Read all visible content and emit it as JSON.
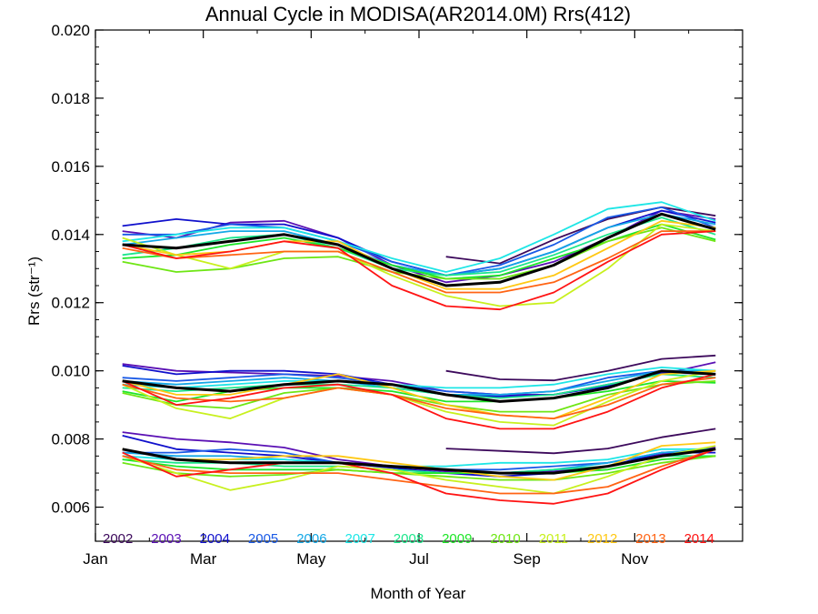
{
  "chart_data": {
    "type": "line",
    "title": "Annual Cycle in MODISA(AR2014.0M) Rrs(412)",
    "xlabel": "Month of Year",
    "ylabel": "Rrs (str⁻¹)",
    "xlim": [
      0.5,
      12.5
    ],
    "ylim": [
      0.005,
      0.02
    ],
    "x_ticks": [
      {
        "value": 0.5,
        "label": "Jan"
      },
      {
        "value": 2.5,
        "label": "Mar"
      },
      {
        "value": 4.5,
        "label": "May"
      },
      {
        "value": 6.5,
        "label": "Jul"
      },
      {
        "value": 8.5,
        "label": "Sep"
      },
      {
        "value": 10.5,
        "label": "Nov"
      }
    ],
    "y_ticks": [
      {
        "value": 0.006,
        "label": "0.006"
      },
      {
        "value": 0.008,
        "label": "0.008"
      },
      {
        "value": 0.01,
        "label": "0.010"
      },
      {
        "value": 0.012,
        "label": "0.012"
      },
      {
        "value": 0.014,
        "label": "0.014"
      },
      {
        "value": 0.016,
        "label": "0.016"
      },
      {
        "value": 0.018,
        "label": "0.018"
      },
      {
        "value": 0.02,
        "label": "0.020"
      }
    ],
    "legend_position": "bottom-left",
    "x": [
      1,
      2,
      3,
      4,
      5,
      6,
      7,
      8,
      9,
      10,
      11,
      12
    ],
    "series": [
      {
        "name": "2002",
        "color": "#3d0a5c",
        "groups": [
          [
            null,
            null,
            null,
            null,
            null,
            null,
            0.01335,
            0.01315,
            0.01385,
            0.01445,
            0.0148,
            0.01455
          ],
          [
            null,
            null,
            null,
            null,
            null,
            null,
            0.01,
            0.00975,
            0.00972,
            0.01,
            0.01035,
            0.01045
          ],
          [
            null,
            null,
            null,
            null,
            null,
            null,
            0.00772,
            0.00765,
            0.00758,
            0.00772,
            0.00805,
            0.0083
          ]
        ]
      },
      {
        "name": "2003",
        "color": "#5a10b4",
        "groups": [
          [
            0.0141,
            0.0139,
            0.01435,
            0.0144,
            0.0139,
            0.0131,
            0.0126,
            0.0128,
            0.0132,
            0.0139,
            0.0147,
            0.01445
          ],
          [
            0.0102,
            0.01,
            0.00995,
            0.0099,
            0.00985,
            0.0097,
            0.0094,
            0.0093,
            0.0093,
            0.0096,
            0.0099,
            0.01025
          ],
          [
            0.0082,
            0.008,
            0.0079,
            0.00775,
            0.0074,
            0.0072,
            0.00705,
            0.007,
            0.00705,
            0.0072,
            0.00755,
            0.00775
          ]
        ]
      },
      {
        "name": "2004",
        "color": "#1010cc",
        "groups": [
          [
            0.01425,
            0.01445,
            0.0143,
            0.0143,
            0.0139,
            0.0132,
            0.0128,
            0.013,
            0.0135,
            0.0142,
            0.0147,
            0.01435
          ],
          [
            0.01015,
            0.0099,
            0.01,
            0.01,
            0.0099,
            0.0096,
            0.0093,
            0.00925,
            0.0093,
            0.00955,
            0.00995,
            0.0099
          ],
          [
            0.0081,
            0.0077,
            0.0076,
            0.0075,
            0.0073,
            0.00715,
            0.007,
            0.0069,
            0.007,
            0.0072,
            0.0076,
            0.0076
          ]
        ]
      },
      {
        "name": "2005",
        "color": "#1a5ae6",
        "groups": [
          [
            0.014,
            0.014,
            0.0143,
            0.0142,
            0.0138,
            0.0132,
            0.0128,
            0.0131,
            0.0137,
            0.0145,
            0.0148,
            0.0142
          ],
          [
            0.0098,
            0.0097,
            0.0098,
            0.0099,
            0.0098,
            0.0096,
            0.0094,
            0.0093,
            0.0094,
            0.0098,
            0.01,
            0.0099
          ],
          [
            0.0076,
            0.0076,
            0.0077,
            0.0076,
            0.0073,
            0.0072,
            0.0071,
            0.0071,
            0.0072,
            0.0073,
            0.0076,
            0.0077
          ]
        ]
      },
      {
        "name": "2006",
        "color": "#14a8e6",
        "groups": [
          [
            0.0137,
            0.0139,
            0.0141,
            0.0141,
            0.0137,
            0.0131,
            0.0128,
            0.013,
            0.0135,
            0.0142,
            0.0146,
            0.0143
          ],
          [
            0.0097,
            0.0096,
            0.0097,
            0.0098,
            0.0097,
            0.0095,
            0.0093,
            0.0093,
            0.0094,
            0.0097,
            0.01,
            0.01
          ],
          [
            0.0076,
            0.0075,
            0.0075,
            0.0074,
            0.0073,
            0.0072,
            0.0071,
            0.007,
            0.0071,
            0.0073,
            0.0076,
            0.0077
          ]
        ]
      },
      {
        "name": "2007",
        "color": "#1ee6e6",
        "groups": [
          [
            0.0138,
            0.014,
            0.0142,
            0.0142,
            0.0138,
            0.0133,
            0.0129,
            0.0133,
            0.014,
            0.01475,
            0.01495,
            0.0144
          ],
          [
            0.0096,
            0.0095,
            0.0096,
            0.0097,
            0.0097,
            0.0096,
            0.0095,
            0.0095,
            0.0096,
            0.0099,
            0.0101,
            0.01
          ],
          [
            0.0075,
            0.0074,
            0.0074,
            0.0074,
            0.0073,
            0.0072,
            0.0072,
            0.0073,
            0.0073,
            0.0074,
            0.0077,
            0.0077
          ]
        ]
      },
      {
        "name": "2008",
        "color": "#1ee68c",
        "groups": [
          [
            0.0134,
            0.0136,
            0.0139,
            0.014,
            0.0136,
            0.013,
            0.0128,
            0.0129,
            0.0134,
            0.014,
            0.0145,
            0.014
          ],
          [
            0.0095,
            0.0094,
            0.0095,
            0.0096,
            0.0096,
            0.0095,
            0.0093,
            0.0092,
            0.0093,
            0.0096,
            0.0099,
            0.0098
          ],
          [
            0.0074,
            0.0073,
            0.0073,
            0.0072,
            0.0072,
            0.0071,
            0.007,
            0.007,
            0.0071,
            0.0072,
            0.0075,
            0.0075
          ]
        ]
      },
      {
        "name": "2009",
        "color": "#1ee628",
        "groups": [
          [
            0.0133,
            0.0134,
            0.0137,
            0.0139,
            0.0136,
            0.0131,
            0.0127,
            0.0128,
            0.0133,
            0.0138,
            0.0143,
            0.01385
          ],
          [
            0.0094,
            0.0091,
            0.0094,
            0.0095,
            0.0095,
            0.0094,
            0.0091,
            0.0091,
            0.0092,
            0.0094,
            0.0097,
            0.00965
          ],
          [
            0.0074,
            0.0072,
            0.0071,
            0.0071,
            0.0071,
            0.007,
            0.007,
            0.007,
            0.007,
            0.0071,
            0.0074,
            0.0075
          ]
        ]
      },
      {
        "name": "2010",
        "color": "#6ee614",
        "groups": [
          [
            0.0132,
            0.0129,
            0.013,
            0.0133,
            0.01335,
            0.0129,
            0.0127,
            0.0127,
            0.0131,
            0.0138,
            0.0142,
            0.0138
          ],
          [
            0.00935,
            0.009,
            0.0089,
            0.00935,
            0.0095,
            0.0093,
            0.009,
            0.0088,
            0.0088,
            0.0093,
            0.0096,
            0.0097
          ],
          [
            0.0073,
            0.007,
            0.0069,
            0.00695,
            0.0071,
            0.007,
            0.0069,
            0.0068,
            0.0068,
            0.007,
            0.0073,
            0.0075
          ]
        ]
      },
      {
        "name": "2011",
        "color": "#c8f01e",
        "groups": [
          [
            0.0139,
            0.0134,
            0.013,
            0.0135,
            0.0135,
            0.0128,
            0.0122,
            0.0119,
            0.012,
            0.013,
            0.0143,
            0.0141
          ],
          [
            0.0096,
            0.0089,
            0.0086,
            0.0092,
            0.0095,
            0.0093,
            0.0088,
            0.0085,
            0.0084,
            0.0091,
            0.0097,
            0.01
          ],
          [
            0.0075,
            0.007,
            0.0065,
            0.0068,
            0.0072,
            0.0071,
            0.0068,
            0.0066,
            0.0064,
            0.0069,
            0.0075,
            0.0078
          ]
        ]
      },
      {
        "name": "2012",
        "color": "#ffc814",
        "groups": [
          [
            0.0137,
            0.0134,
            0.0135,
            0.0138,
            0.0138,
            0.013,
            0.0124,
            0.0124,
            0.0128,
            0.0136,
            0.0144,
            0.0142
          ],
          [
            0.0097,
            0.0093,
            0.0093,
            0.0096,
            0.0099,
            0.0095,
            0.009,
            0.0087,
            0.0086,
            0.0092,
            0.0099,
            0.01
          ],
          [
            0.0077,
            0.0074,
            0.0074,
            0.0075,
            0.0075,
            0.0073,
            0.0071,
            0.0069,
            0.0068,
            0.0072,
            0.0078,
            0.0079
          ]
        ]
      },
      {
        "name": "2013",
        "color": "#ff6414",
        "groups": [
          [
            0.0136,
            0.0133,
            0.0134,
            0.0135,
            0.0135,
            0.0129,
            0.0123,
            0.0123,
            0.0126,
            0.0133,
            0.0141,
            0.0141
          ],
          [
            0.0096,
            0.0092,
            0.0091,
            0.0092,
            0.0095,
            0.0093,
            0.0089,
            0.0087,
            0.0086,
            0.009,
            0.0096,
            0.0098
          ],
          [
            0.0075,
            0.0071,
            0.007,
            0.007,
            0.007,
            0.0068,
            0.0066,
            0.0064,
            0.0064,
            0.0066,
            0.0072,
            0.0077
          ]
        ]
      },
      {
        "name": "2014",
        "color": "#ff1414",
        "groups": [
          [
            0.0137,
            0.0133,
            0.0135,
            0.0138,
            0.0136,
            0.0125,
            0.0119,
            0.0118,
            0.0123,
            0.0132,
            0.014,
            0.0141
          ],
          [
            0.0097,
            0.009,
            0.0092,
            0.0095,
            0.0096,
            0.0093,
            0.0086,
            0.0083,
            0.0083,
            0.0088,
            0.0095,
            0.0099
          ],
          [
            0.0076,
            0.0069,
            0.0071,
            0.0073,
            0.0073,
            0.007,
            0.0064,
            0.0062,
            0.0061,
            0.0064,
            0.0071,
            0.0077
          ]
        ]
      },
      {
        "name": "",
        "color": "#000000",
        "groups": [
          [
            0.0137,
            0.0136,
            0.0138,
            0.014,
            0.0137,
            0.013,
            0.0125,
            0.0126,
            0.0131,
            0.0139,
            0.0146,
            0.01415
          ],
          [
            0.0097,
            0.0095,
            0.0094,
            0.0096,
            0.0097,
            0.0096,
            0.0093,
            0.0091,
            0.0092,
            0.0095,
            0.01,
            0.0099
          ],
          [
            0.0077,
            0.0074,
            0.0073,
            0.0073,
            0.0073,
            0.0072,
            0.0071,
            0.007,
            0.007,
            0.0072,
            0.0075,
            0.0077
          ]
        ]
      }
    ]
  }
}
